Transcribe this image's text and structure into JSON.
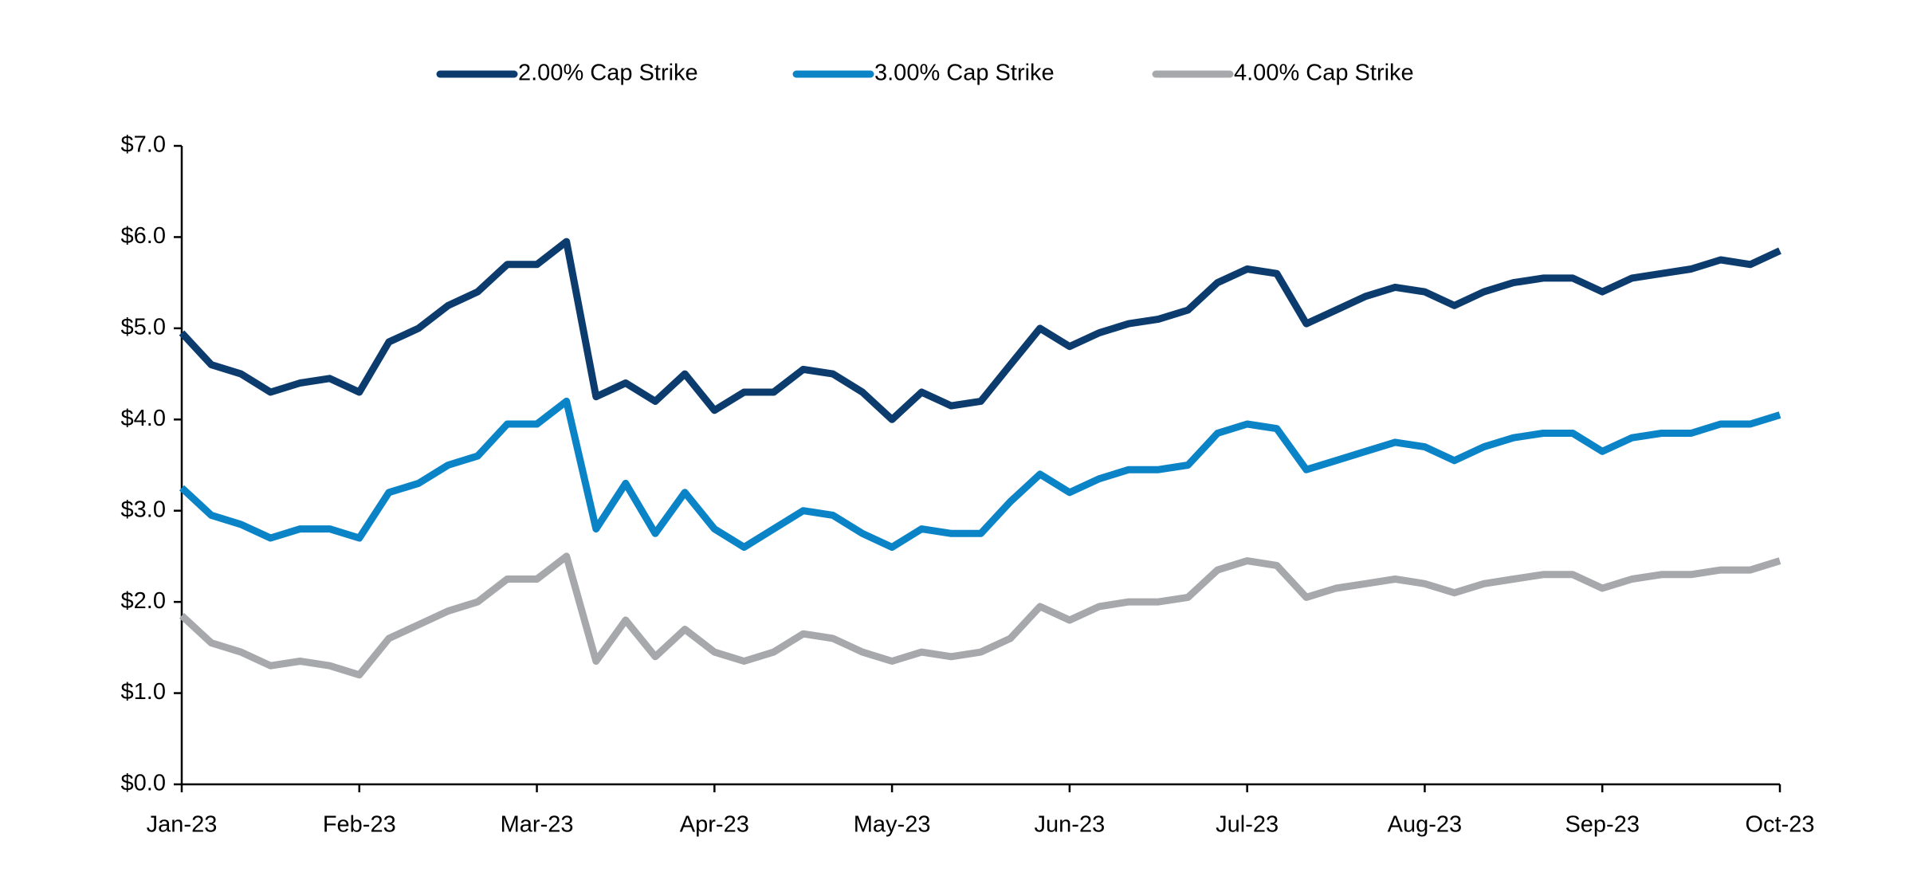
{
  "chart_data": {
    "type": "line",
    "categories": [
      "Jan-23",
      null,
      null,
      null,
      null,
      null,
      "Feb-23",
      null,
      null,
      null,
      null,
      null,
      "Mar-23",
      null,
      null,
      null,
      null,
      null,
      "Apr-23",
      null,
      null,
      null,
      null,
      null,
      "May-23",
      null,
      null,
      null,
      null,
      null,
      "Jun-23",
      null,
      null,
      null,
      null,
      null,
      "Jul-23",
      null,
      null,
      null,
      null,
      null,
      "Aug-23",
      null,
      null,
      null,
      null,
      null,
      "Sep-23",
      null,
      null,
      null,
      null,
      null,
      "Oct-23"
    ],
    "series": [
      {
        "name": "2.00% Cap Strike",
        "color": "#0c3c6e",
        "values": [
          4.95,
          4.6,
          4.5,
          4.3,
          4.4,
          4.45,
          4.3,
          4.85,
          5.0,
          5.25,
          5.4,
          5.7,
          5.7,
          5.95,
          4.25,
          4.4,
          4.2,
          4.5,
          4.1,
          4.3,
          4.3,
          4.55,
          4.5,
          4.3,
          4.0,
          4.3,
          4.15,
          4.2,
          4.6,
          5.0,
          4.8,
          4.95,
          5.05,
          5.1,
          5.2,
          5.5,
          5.65,
          5.6,
          5.05,
          5.2,
          5.35,
          5.45,
          5.4,
          5.25,
          5.4,
          5.5,
          5.55,
          5.55,
          5.4,
          5.55,
          5.6,
          5.65,
          5.75,
          5.7,
          5.85
        ]
      },
      {
        "name": "3.00% Cap Strike",
        "color": "#0a84c6",
        "values": [
          3.25,
          2.95,
          2.85,
          2.7,
          2.8,
          2.8,
          2.7,
          3.2,
          3.3,
          3.5,
          3.6,
          3.95,
          3.95,
          4.2,
          2.8,
          3.3,
          2.75,
          3.2,
          2.8,
          2.6,
          2.8,
          3.0,
          2.95,
          2.75,
          2.6,
          2.8,
          2.75,
          2.75,
          3.1,
          3.4,
          3.2,
          3.35,
          3.45,
          3.45,
          3.5,
          3.85,
          3.95,
          3.9,
          3.45,
          3.55,
          3.65,
          3.75,
          3.7,
          3.55,
          3.7,
          3.8,
          3.85,
          3.85,
          3.65,
          3.8,
          3.85,
          3.85,
          3.95,
          3.95,
          4.05
        ]
      },
      {
        "name": "4.00% Cap Strike",
        "color": "#a6a8ab",
        "values": [
          1.85,
          1.55,
          1.45,
          1.3,
          1.35,
          1.3,
          1.2,
          1.6,
          1.75,
          1.9,
          2.0,
          2.25,
          2.25,
          2.5,
          1.35,
          1.8,
          1.4,
          1.7,
          1.45,
          1.35,
          1.45,
          1.65,
          1.6,
          1.45,
          1.35,
          1.45,
          1.4,
          1.45,
          1.6,
          1.95,
          1.8,
          1.95,
          2.0,
          2.0,
          2.05,
          2.35,
          2.45,
          2.4,
          2.05,
          2.15,
          2.2,
          2.25,
          2.2,
          2.1,
          2.2,
          2.25,
          2.3,
          2.3,
          2.15,
          2.25,
          2.3,
          2.3,
          2.35,
          2.35,
          2.45
        ]
      }
    ],
    "ylim": [
      0,
      7
    ],
    "yticks": [
      {
        "value": 0,
        "label": "$0.0"
      },
      {
        "value": 1,
        "label": "$1.0"
      },
      {
        "value": 2,
        "label": "$2.0"
      },
      {
        "value": 3,
        "label": "$3.0"
      },
      {
        "value": 4,
        "label": "$4.0"
      },
      {
        "value": 5,
        "label": "$5.0"
      },
      {
        "value": 6,
        "label": "$6.0"
      },
      {
        "value": 7,
        "label": "$7.0"
      }
    ],
    "grid": false,
    "legend": "top"
  }
}
